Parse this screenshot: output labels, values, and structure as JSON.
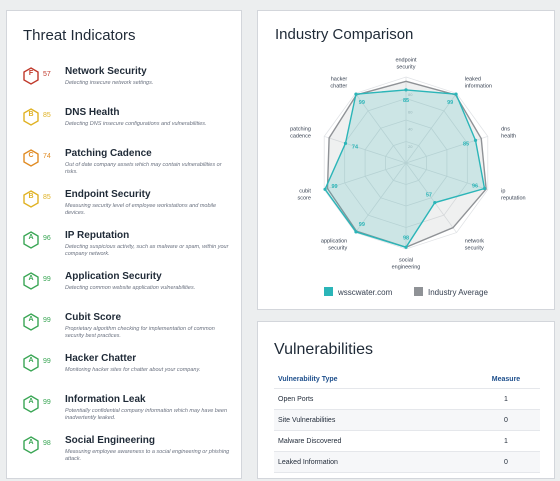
{
  "threat_panel": {
    "title": "Threat Indicators",
    "items": [
      {
        "grade": "F",
        "score": "57",
        "color": "#c0392b",
        "name": "Network Security",
        "desc": "Detecting insecure network settings."
      },
      {
        "grade": "B",
        "score": "85",
        "color": "#e0b223",
        "name": "DNS Health",
        "desc": "Detecting DNS insecure configurations and vulnerabilities."
      },
      {
        "grade": "C",
        "score": "74",
        "color": "#e08b23",
        "name": "Patching Cadence",
        "desc": "Out of date company assets which may contain vulnerabilities or risks."
      },
      {
        "grade": "B",
        "score": "85",
        "color": "#e0b223",
        "name": "Endpoint Security",
        "desc": "Measuring security level of employee workstations and mobile devices."
      },
      {
        "grade": "A",
        "score": "96",
        "color": "#3aa655",
        "name": "IP Reputation",
        "desc": "Detecting suspicious activity, such as malware or spam, within your company network."
      },
      {
        "grade": "A",
        "score": "99",
        "color": "#3aa655",
        "name": "Application Security",
        "desc": "Detecting common website application vulnerabilities."
      },
      {
        "grade": "A",
        "score": "99",
        "color": "#3aa655",
        "name": "Cubit Score",
        "desc": "Proprietary algorithm checking for implementation of common security best practices."
      },
      {
        "grade": "A",
        "score": "99",
        "color": "#3aa655",
        "name": "Hacker Chatter",
        "desc": "Monitoring hacker sites for chatter about your company."
      },
      {
        "grade": "A",
        "score": "99",
        "color": "#3aa655",
        "name": "Information Leak",
        "desc": "Potentially confidential company information which may have been inadvertently leaked."
      },
      {
        "grade": "A",
        "score": "98",
        "color": "#3aa655",
        "name": "Social Engineering",
        "desc": "Measuring employee awareness to a social engineering or phishing attack."
      }
    ]
  },
  "industry_panel": {
    "title": "Industry Comparison",
    "legend": {
      "company": "wsscwater.com",
      "average": "Industry Average"
    }
  },
  "chart_data": {
    "type": "radar",
    "categories": [
      "endpoint security",
      "leaked information",
      "dns health",
      "ip reputation",
      "network security",
      "social engineering",
      "application security",
      "cubit score",
      "patching cadence",
      "hacker chatter"
    ],
    "category_labels": [
      [
        "endpoint",
        "security"
      ],
      [
        "leaked",
        "information"
      ],
      [
        "dns",
        "health"
      ],
      [
        "ip",
        "reputation"
      ],
      [
        "network",
        "security"
      ],
      [
        "social",
        "engineering"
      ],
      [
        "application",
        "security"
      ],
      [
        "cubit",
        "score"
      ],
      [
        "patching",
        "cadence"
      ],
      [
        "hacker",
        "chatter"
      ]
    ],
    "rlim": [
      0,
      100
    ],
    "series": [
      {
        "name": "wsscwater.com",
        "color": "#2bb5b8",
        "values": [
          85,
          99,
          85,
          96,
          57,
          98,
          99,
          99,
          74,
          99
        ]
      },
      {
        "name": "Industry Average",
        "color": "#8f9296",
        "values": [
          95,
          98,
          92,
          98,
          93,
          98,
          98,
          96,
          94,
          98
        ]
      }
    ],
    "value_labels": [
      "85",
      "99",
      "85",
      "96",
      "57",
      "98",
      "99",
      "99",
      "74",
      "99"
    ]
  },
  "vuln_panel": {
    "title": "Vulnerabilities",
    "headers": {
      "type": "Vulnerability Type",
      "measure": "Measure"
    },
    "rows": [
      {
        "type": "Open Ports",
        "measure": "1"
      },
      {
        "type": "Site Vulnerabilities",
        "measure": "0"
      },
      {
        "type": "Malware Discovered",
        "measure": "1"
      },
      {
        "type": "Leaked Information",
        "measure": "0"
      }
    ]
  }
}
